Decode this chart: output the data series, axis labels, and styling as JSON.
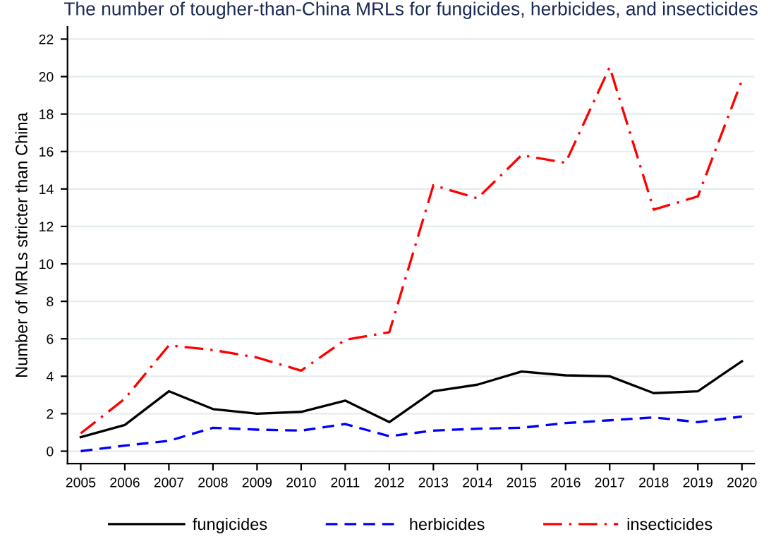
{
  "chart_data": {
    "type": "line",
    "title": "The number of tougher-than-China MRLs for fungicides, herbicides, and insecticides",
    "ylabel": "Number of MRLs stricter than China",
    "x": [
      2005,
      2006,
      2007,
      2008,
      2009,
      2010,
      2011,
      2012,
      2013,
      2014,
      2015,
      2016,
      2017,
      2018,
      2019,
      2020
    ],
    "series": [
      {
        "name": "fungicides",
        "color": "#000000",
        "line_style": "solid",
        "values": [
          0.75,
          1.4,
          3.2,
          2.25,
          2.0,
          2.1,
          2.7,
          1.55,
          3.2,
          3.55,
          4.25,
          4.05,
          4.0,
          3.1,
          3.2,
          4.8
        ]
      },
      {
        "name": "herbicides",
        "color": "#0000ff",
        "line_style": "dashed",
        "values": [
          0.0,
          0.3,
          0.55,
          1.25,
          1.15,
          1.1,
          1.45,
          0.8,
          1.1,
          1.2,
          1.25,
          1.5,
          1.65,
          1.8,
          1.55,
          1.85
        ]
      },
      {
        "name": "insecticides",
        "color": "#ff0000",
        "line_style": "dashdot",
        "values": [
          0.95,
          2.8,
          5.65,
          5.4,
          5.0,
          4.3,
          5.95,
          6.35,
          14.2,
          13.5,
          15.8,
          15.4,
          20.5,
          12.9,
          13.6,
          19.8
        ]
      }
    ],
    "xlim": [
      2004.7,
      2020.28
    ],
    "ylim": [
      -0.66,
      22.65
    ],
    "xticks": [
      2005,
      2006,
      2007,
      2008,
      2009,
      2010,
      2011,
      2012,
      2013,
      2014,
      2015,
      2016,
      2017,
      2018,
      2019,
      2020
    ],
    "yticks": [
      0,
      2,
      4,
      6,
      8,
      10,
      12,
      14,
      16,
      18,
      20,
      22
    ],
    "grid": "y",
    "legend": "bottom",
    "marker": "none"
  }
}
